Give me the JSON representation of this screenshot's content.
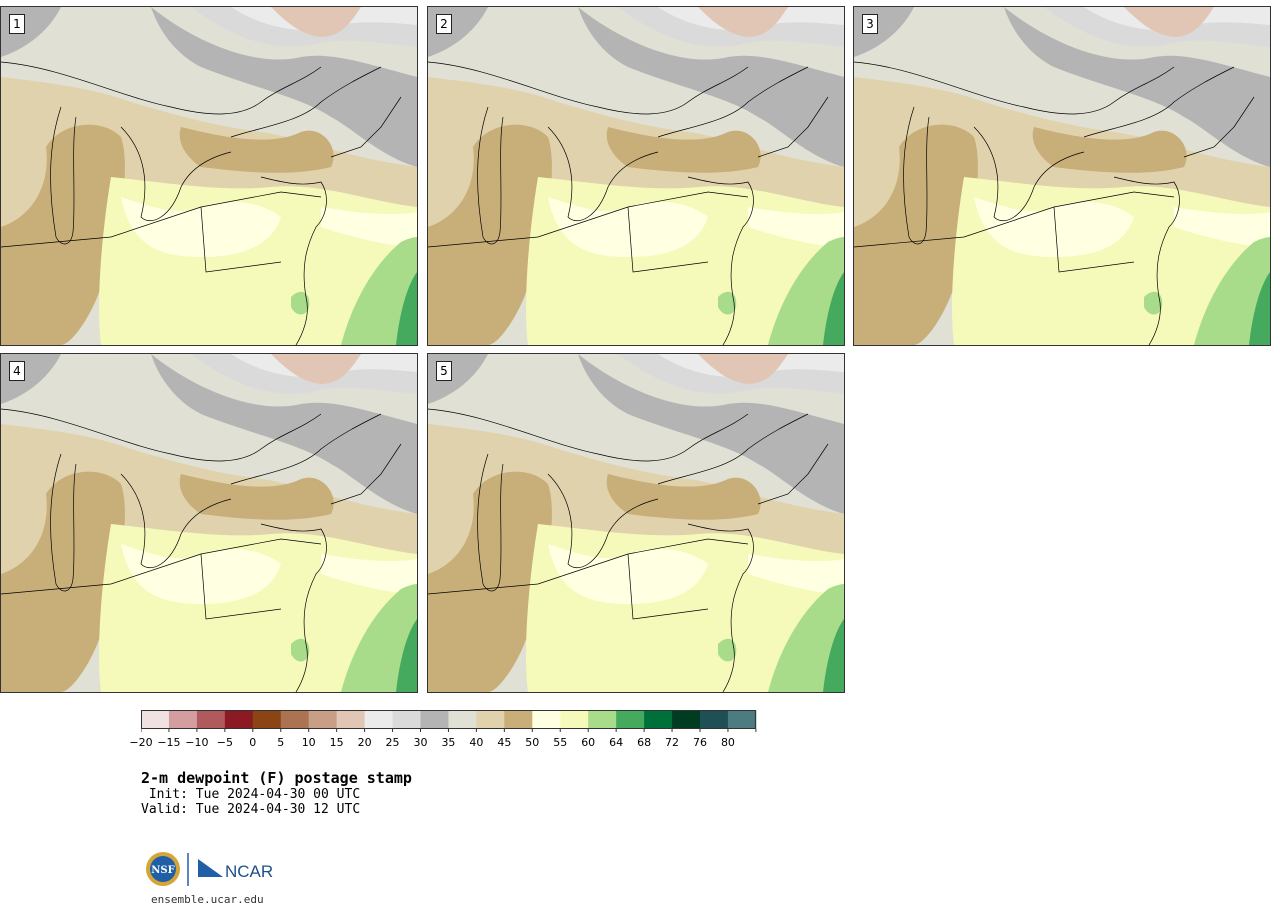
{
  "panels": [
    {
      "label": "1"
    },
    {
      "label": "2"
    },
    {
      "label": "3"
    },
    {
      "label": "4"
    },
    {
      "label": "5"
    }
  ],
  "colorbar": {
    "colors": [
      "#efe2e0",
      "#d49ea0",
      "#b05a5e",
      "#8b1a22",
      "#8b4514",
      "#ac7352",
      "#c89e86",
      "#e1c6b6",
      "#ebebeb",
      "#dadada",
      "#b4b4b4",
      "#e0e0d4",
      "#e0d2ac",
      "#c8ae78",
      "#ffffe2",
      "#f5faba",
      "#a8dc8a",
      "#46aa5e",
      "#00703a",
      "#003c22",
      "#1e5056",
      "#4c7c80"
    ],
    "labels": [
      "−20",
      "−15",
      "−10",
      "−5",
      "0",
      "5",
      "10",
      "15",
      "20",
      "25",
      "30",
      "35",
      "40",
      "45",
      "50",
      "55",
      "60",
      "64",
      "68",
      "72",
      "76",
      "80"
    ]
  },
  "title": "2-m dewpoint (F) postage stamp",
  "init": " Init: Tue 2024-04-30 00 UTC",
  "valid": "Valid: Tue 2024-04-30 12 UTC",
  "logo": {
    "nsf": "NSF",
    "ncar": "NCAR"
  },
  "site": "ensemble.ucar.edu"
}
